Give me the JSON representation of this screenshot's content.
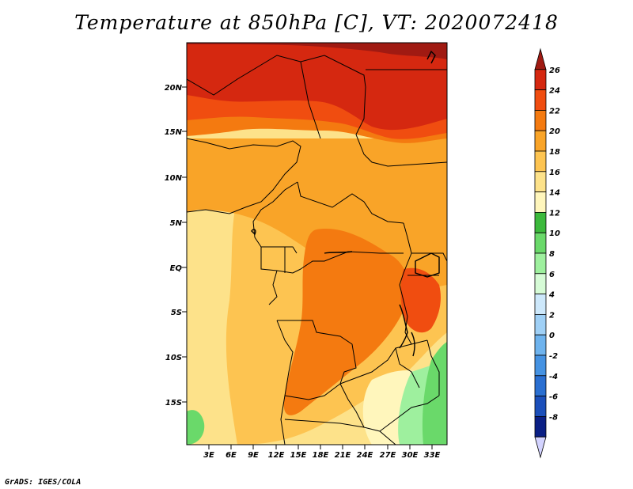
{
  "title": "Temperature at 850hPa [C], VT: 2020072418",
  "credit": "GrADS: IGES/COLA",
  "map": {
    "lat_labels": [
      "20N",
      "15N",
      "10N",
      "5N",
      "EQ",
      "5S",
      "10S",
      "15S"
    ],
    "lon_labels": [
      "3E",
      "6E",
      "9E",
      "12E",
      "15E",
      "18E",
      "21E",
      "24E",
      "27E",
      "30E",
      "33E"
    ]
  },
  "colorbar": {
    "labels": [
      "26",
      "24",
      "22",
      "20",
      "18",
      "16",
      "14",
      "12",
      "10",
      "8",
      "6",
      "4",
      "2",
      "0",
      "-2",
      "-4",
      "-6",
      "-8"
    ],
    "colors": [
      "#a01a12",
      "#d52810",
      "#f04d10",
      "#f47a10",
      "#f9a428",
      "#fdc451",
      "#fde28a",
      "#fff6bc",
      "#3cb93c",
      "#6ad96a",
      "#9ef09e",
      "#d6fbd6",
      "#cde8fb",
      "#9fd0f6",
      "#6eb3ee",
      "#4592e2",
      "#2a6fd1",
      "#1b4fba",
      "#0a1f85",
      "#d3d3ff"
    ]
  },
  "colors": {
    "ocean": "#fde28a",
    "sahara": "#d52810",
    "hot_zone": "#f04d10",
    "land_mid": "#f9a428"
  }
}
